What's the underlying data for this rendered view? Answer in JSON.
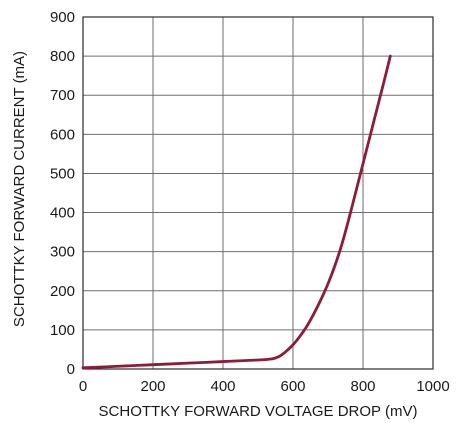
{
  "chart_data": {
    "type": "line",
    "title": "",
    "xlabel": "SCHOTTKY FORWARD VOLTAGE DROP (mV)",
    "ylabel": "SCHOTTKY FORWARD CURRENT (mA)",
    "xlim": [
      0,
      1000
    ],
    "ylim": [
      0,
      900
    ],
    "x_ticks": [
      0,
      200,
      400,
      600,
      800,
      1000
    ],
    "y_ticks": [
      0,
      100,
      200,
      300,
      400,
      500,
      600,
      700,
      800,
      900
    ],
    "x_tick_labels": [
      "0",
      "200",
      "400",
      "600",
      "800",
      "1000"
    ],
    "y_tick_labels": [
      "0",
      "100",
      "200",
      "300",
      "400",
      "500",
      "600",
      "700",
      "800",
      "900"
    ],
    "grid": true,
    "series": [
      {
        "color": "#8b1c3a",
        "x": [
          0,
          100,
          200,
          300,
          400,
          500,
          540,
          560,
          580,
          600,
          620,
          640,
          660,
          680,
          700,
          720,
          740,
          760,
          780,
          800,
          820,
          840,
          860,
          878
        ],
        "y": [
          3,
          7,
          11,
          15,
          19,
          23,
          26,
          32,
          45,
          62,
          84,
          110,
          142,
          178,
          218,
          265,
          320,
          385,
          455,
          525,
          595,
          665,
          735,
          800
        ]
      }
    ]
  }
}
